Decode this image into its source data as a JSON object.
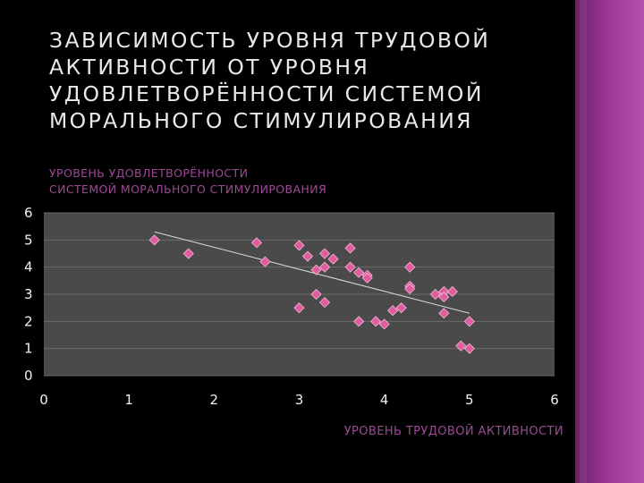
{
  "slide": {
    "title": "ЗАВИСИМОСТЬ УРОВНЯ ТРУДОВОЙ АКТИВНОСТИ ОТ УРОВНЯ УДОВЛЕТВОРЁННОСТИ СИСТЕМОЙ МОРАЛЬНОГО СТИМУЛИРОВАНИЯ",
    "accent_color": "#a8459f",
    "marker_color": "#e05c9e"
  },
  "chart_data": {
    "type": "scatter",
    "ylabel_lines": [
      "УРОВЕНЬ УДОВЛЕТВОРЁННОСТИ",
      "СИСТЕМОЙ МОРАЛЬНОГО СТИМУЛИРОВАНИЯ"
    ],
    "xlabel": "УРОВЕНЬ ТРУДОВОЙ АКТИВНОСТИ",
    "xlim": [
      0,
      6
    ],
    "ylim": [
      0,
      6
    ],
    "x_ticks": [
      "0",
      "1",
      "2",
      "3",
      "4",
      "5",
      "6"
    ],
    "y_ticks": [
      "0",
      "1",
      "2",
      "3",
      "4",
      "5",
      "6"
    ],
    "grid": true,
    "legend": "none",
    "trendline": {
      "x": [
        1.3,
        5.0
      ],
      "y": [
        5.3,
        2.3
      ]
    },
    "points": [
      {
        "x": 1.3,
        "y": 5.0
      },
      {
        "x": 1.7,
        "y": 4.5
      },
      {
        "x": 2.5,
        "y": 4.9
      },
      {
        "x": 2.6,
        "y": 4.2
      },
      {
        "x": 3.0,
        "y": 4.8
      },
      {
        "x": 3.1,
        "y": 4.4
      },
      {
        "x": 3.2,
        "y": 3.9
      },
      {
        "x": 3.3,
        "y": 4.5
      },
      {
        "x": 3.3,
        "y": 4.0
      },
      {
        "x": 3.4,
        "y": 4.3
      },
      {
        "x": 3.6,
        "y": 4.7
      },
      {
        "x": 3.6,
        "y": 4.0
      },
      {
        "x": 3.7,
        "y": 3.8
      },
      {
        "x": 3.8,
        "y": 3.7
      },
      {
        "x": 3.8,
        "y": 3.6
      },
      {
        "x": 3.2,
        "y": 3.0
      },
      {
        "x": 3.3,
        "y": 2.7
      },
      {
        "x": 3.0,
        "y": 2.5
      },
      {
        "x": 3.7,
        "y": 2.0
      },
      {
        "x": 3.9,
        "y": 2.0
      },
      {
        "x": 4.0,
        "y": 1.9
      },
      {
        "x": 4.1,
        "y": 2.4
      },
      {
        "x": 4.2,
        "y": 2.5
      },
      {
        "x": 4.3,
        "y": 4.0
      },
      {
        "x": 4.3,
        "y": 3.3
      },
      {
        "x": 4.3,
        "y": 3.2
      },
      {
        "x": 4.6,
        "y": 3.0
      },
      {
        "x": 4.7,
        "y": 3.1
      },
      {
        "x": 4.7,
        "y": 2.9
      },
      {
        "x": 4.8,
        "y": 3.1
      },
      {
        "x": 4.7,
        "y": 2.3
      },
      {
        "x": 5.0,
        "y": 2.0
      },
      {
        "x": 4.9,
        "y": 1.1
      },
      {
        "x": 5.0,
        "y": 1.0
      }
    ]
  }
}
